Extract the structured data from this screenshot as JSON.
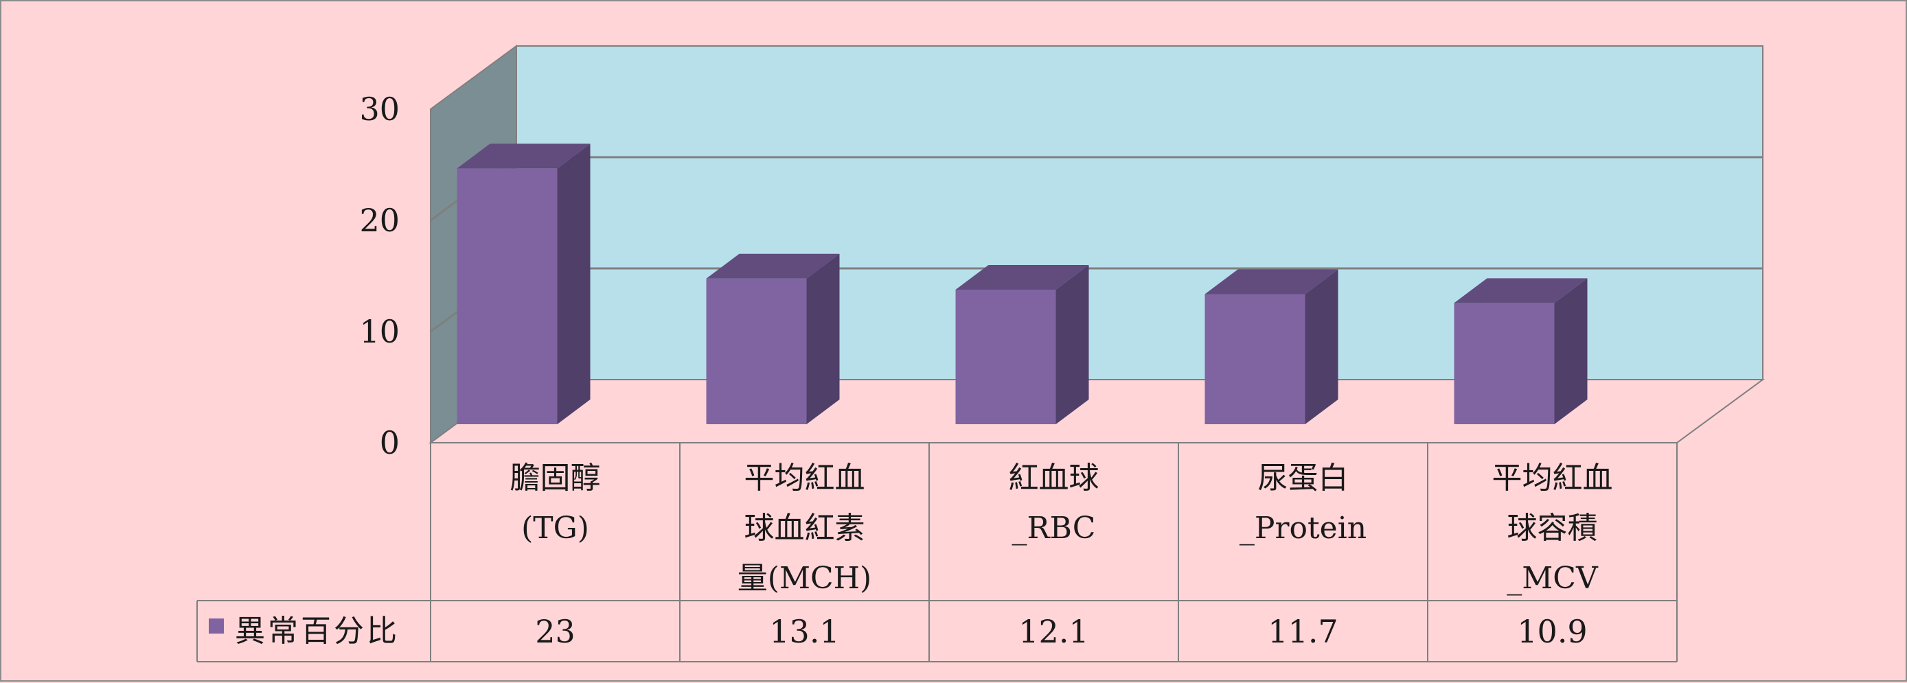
{
  "chart_data": {
    "type": "bar",
    "categories": [
      [
        "膽固醇",
        "(TG)"
      ],
      [
        "平均紅血",
        "球血紅素",
        "量(MCH)"
      ],
      [
        "紅血球",
        "_RBC"
      ],
      [
        "尿蛋白",
        "_Protein"
      ],
      [
        "平均紅血",
        "球容積",
        "_MCV"
      ]
    ],
    "series": [
      {
        "name": "異常百分比",
        "values": [
          23,
          13.1,
          12.1,
          11.7,
          10.9
        ]
      }
    ],
    "value_labels": [
      "23",
      "13.1",
      "12.1",
      "11.7",
      "10.9"
    ],
    "ylim": [
      0,
      30
    ],
    "yticks": [
      0,
      10,
      20,
      30
    ],
    "grid": true,
    "legend": "data-table-left",
    "three_d": true,
    "colors": {
      "background": "#ffd5d8",
      "back_wall": "#b8e0ea",
      "side_wall": "#7b8e94",
      "bar_front": "#8064a2",
      "bar_top": "#624c7e",
      "bar_side": "#4f3f69",
      "grid": "#7f7f7f"
    }
  }
}
